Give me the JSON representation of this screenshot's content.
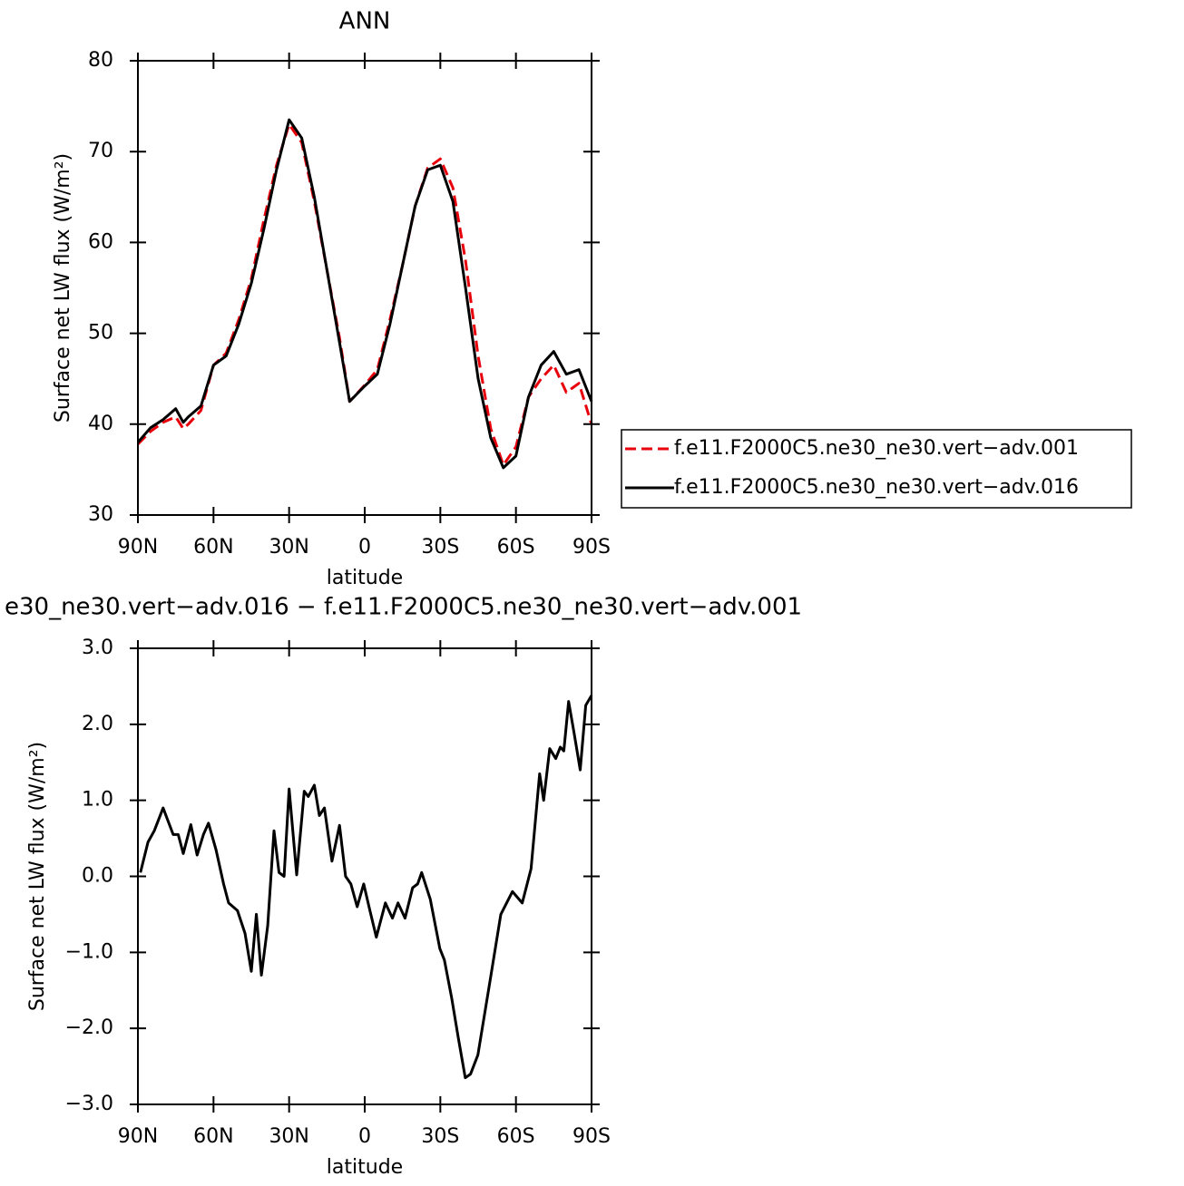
{
  "chart_data": [
    {
      "type": "line",
      "title": "ANN",
      "xlabel": "latitude",
      "ylabel": "Surface net LW flux (W/m²)",
      "x": [
        90,
        85,
        80,
        75,
        72,
        70,
        65,
        60,
        55,
        50,
        45,
        40,
        35,
        30,
        25,
        20,
        15,
        10,
        6,
        0,
        -5,
        -10,
        -15,
        -20,
        -25,
        -30,
        -35,
        -40,
        -45,
        -50,
        -55,
        -60,
        -65,
        -70,
        -75,
        -80,
        -85,
        -90
      ],
      "series": [
        {
          "name": "f.e11.F2000C5.ne30_ne30.vert−adv.001",
          "color": "#e8000b",
          "line_style": "dashed",
          "values": [
            37.8,
            39.2,
            40.2,
            40.8,
            39.5,
            40.0,
            41.5,
            46.5,
            47.8,
            51.5,
            56,
            62.5,
            68.5,
            73.0,
            71,
            64.5,
            57,
            49.5,
            42.5,
            44.3,
            46,
            51.5,
            57.5,
            64,
            68.2,
            69.2,
            66,
            58,
            47.5,
            39.5,
            35.5,
            37.5,
            43,
            45,
            46.5,
            43.5,
            44.5,
            40
          ]
        },
        {
          "name": "f.e11.F2000C5.ne30_ne30.vert−adv.016",
          "color": "#000000",
          "line_style": "solid",
          "values": [
            38,
            39.6,
            40.5,
            41.7,
            40.2,
            40.8,
            42.0,
            46.5,
            47.5,
            51,
            55.5,
            61.5,
            68,
            73.5,
            71.5,
            65,
            57,
            49,
            42.5,
            44.2,
            45.5,
            51,
            57.5,
            64,
            68,
            68.5,
            64.5,
            55,
            45,
            38.5,
            35.2,
            36.5,
            43,
            46.5,
            48,
            45.5,
            46,
            42.5
          ]
        }
      ],
      "xlim": [
        90,
        -90
      ],
      "xticks": [
        {
          "value": 90,
          "label": "90N"
        },
        {
          "value": 60,
          "label": "60N"
        },
        {
          "value": 30,
          "label": "30N"
        },
        0,
        {
          "value": -30,
          "label": "30S"
        },
        {
          "value": -60,
          "label": "60S"
        },
        {
          "value": -90,
          "label": "90S"
        }
      ],
      "ylim": [
        30,
        80
      ],
      "yticks": [
        30,
        40,
        50,
        60,
        70,
        80
      ],
      "legend": "right"
    },
    {
      "type": "line",
      "title": "e30_ne30.vert−adv.016 − f.e11.F2000C5.ne30_ne30.vert−adv.001",
      "xlabel": "latitude",
      "ylabel": "Surface net LW flux (W/m²)",
      "x": [
        89,
        86,
        83.5,
        80,
        76,
        74,
        72,
        69,
        66.5,
        64,
        62,
        59,
        56,
        54,
        50.5,
        47.5,
        45,
        43,
        41,
        38.5,
        36,
        34,
        32,
        30,
        27,
        24,
        22.4,
        20,
        18,
        16,
        13,
        10,
        7.6,
        5.5,
        3,
        0.4,
        -1.7,
        -4.6,
        -8.2,
        -11,
        -13.2,
        -16,
        -19,
        -21,
        -22.6,
        -26,
        -29.8,
        -31.6,
        -34.5,
        -37,
        -39.9,
        -42,
        -44.9,
        -49.6,
        -54,
        -58.6,
        -62.5,
        -66,
        -69.4,
        -71,
        -73.4,
        -75.8,
        -77.6,
        -79,
        -80.9,
        -83,
        -85.5,
        -87.7,
        -90
      ],
      "series": [
        {
          "color": "#000000",
          "line_style": "solid",
          "values": [
            0.05,
            0.45,
            0.6,
            0.9,
            0.55,
            0.55,
            0.3,
            0.68,
            0.28,
            0.55,
            0.7,
            0.35,
            -0.1,
            -0.35,
            -0.45,
            -0.75,
            -1.25,
            -0.5,
            -1.3,
            -0.65,
            0.6,
            0.05,
            0.0,
            1.15,
            0.02,
            1.12,
            1.05,
            1.2,
            0.8,
            0.9,
            0.2,
            0.67,
            0.0,
            -0.1,
            -0.4,
            -0.1,
            -0.4,
            -0.8,
            -0.35,
            -0.55,
            -0.35,
            -0.55,
            -0.15,
            -0.1,
            0.05,
            -0.3,
            -0.95,
            -1.1,
            -1.6,
            -2.1,
            -2.65,
            -2.6,
            -2.35,
            -1.4,
            -0.5,
            -0.2,
            -0.35,
            0.1,
            1.35,
            1.0,
            1.68,
            1.55,
            1.7,
            1.65,
            2.3,
            1.9,
            1.4,
            2.25,
            2.38
          ]
        }
      ],
      "xlim": [
        90,
        -90
      ],
      "xticks": [
        {
          "value": 90,
          "label": "90N"
        },
        {
          "value": 60,
          "label": "60N"
        },
        {
          "value": 30,
          "label": "30N"
        },
        0,
        {
          "value": -30,
          "label": "30S"
        },
        {
          "value": -60,
          "label": "60S"
        },
        {
          "value": -90,
          "label": "90S"
        }
      ],
      "ylim": [
        -3,
        3
      ],
      "yticks": [
        {
          "value": -3,
          "label": "−3.0"
        },
        {
          "value": -2,
          "label": "−2.0"
        },
        {
          "value": -1,
          "label": "−1.0"
        },
        {
          "value": 0,
          "label": "0.0"
        },
        {
          "value": 1,
          "label": "1.0"
        },
        {
          "value": 2,
          "label": "2.0"
        },
        {
          "value": 3,
          "label": "3.0"
        }
      ]
    }
  ]
}
